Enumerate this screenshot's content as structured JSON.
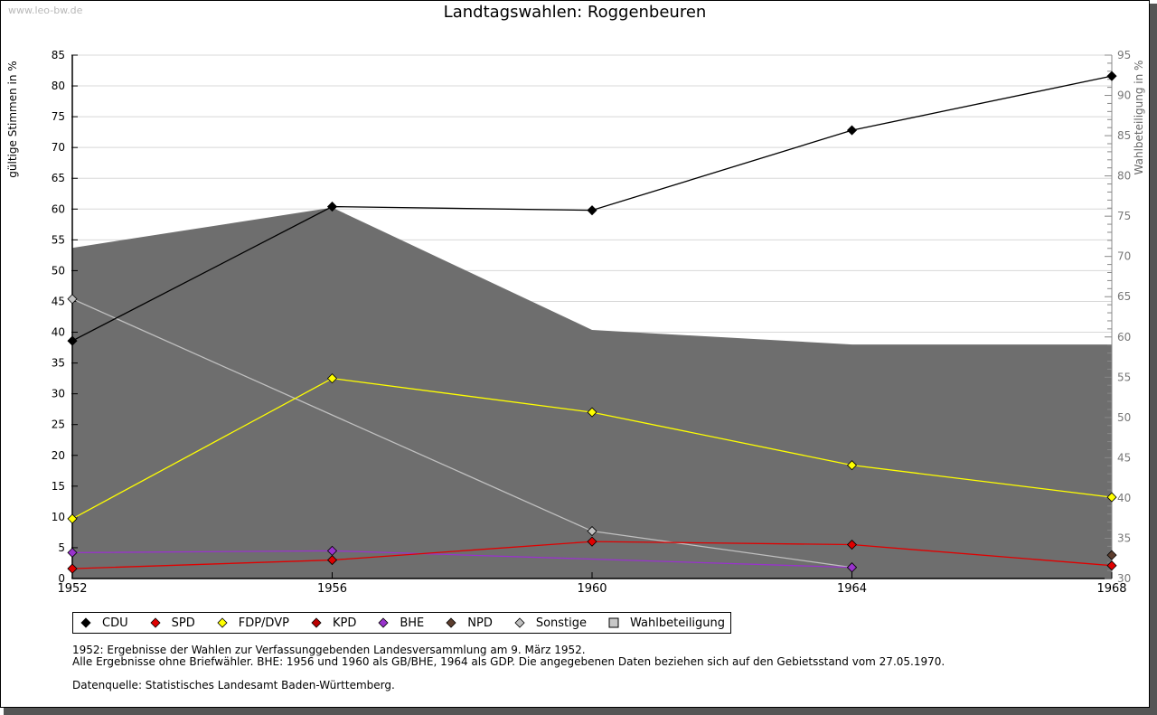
{
  "watermark": "www.leo-bw.de",
  "chart_data": {
    "type": "line",
    "title": "Landtagswahlen: Roggenbeuren",
    "ylabel": "gültige Stimmen in %",
    "y2label": "Wahlbeteiligung in %",
    "xlabel": "",
    "x": [
      1952,
      1956,
      1960,
      1964,
      1968
    ],
    "ylim": [
      0,
      85
    ],
    "y2lim": [
      30,
      95
    ],
    "yticks": [
      0,
      5,
      10,
      15,
      20,
      25,
      30,
      35,
      40,
      45,
      50,
      55,
      60,
      65,
      70,
      75,
      80,
      85
    ],
    "y2ticks": [
      30,
      35,
      40,
      45,
      50,
      55,
      60,
      65,
      70,
      75,
      80,
      85,
      90,
      95
    ],
    "grid": true,
    "series": [
      {
        "name": "Wahlbeteiligung",
        "axis": "right",
        "kind": "area",
        "color": "#808080",
        "values": [
          71.0,
          76.0,
          60.8,
          59.0,
          59.0
        ]
      },
      {
        "name": "Sonstige",
        "color": "#c0c0c0",
        "values": [
          45.4,
          null,
          7.7,
          1.8,
          null
        ]
      },
      {
        "name": "BHE",
        "color": "#9933cc",
        "values": [
          4.2,
          4.5,
          null,
          1.8,
          null
        ]
      },
      {
        "name": "KPD",
        "color": "#bb0000",
        "values": [
          1.6,
          null,
          null,
          null,
          null
        ]
      },
      {
        "name": "SPD",
        "color": "#e00000",
        "values": [
          1.6,
          3.0,
          6.0,
          5.5,
          2.1
        ]
      },
      {
        "name": "FDP/DVP",
        "color": "#ffff00",
        "values": [
          9.7,
          32.5,
          27.0,
          18.4,
          13.2
        ]
      },
      {
        "name": "NPD",
        "color": "#5c3d2e",
        "values": [
          null,
          null,
          null,
          null,
          3.8
        ]
      },
      {
        "name": "CDU",
        "color": "#000000",
        "values": [
          38.6,
          60.4,
          59.8,
          72.8,
          81.6
        ]
      }
    ],
    "legend": {
      "placement": "bottom",
      "items": [
        {
          "label": "CDU",
          "color": "#000000",
          "shape": "diamond"
        },
        {
          "label": "SPD",
          "color": "#e00000",
          "shape": "diamond"
        },
        {
          "label": "FDP/DVP",
          "color": "#ffff00",
          "shape": "diamond"
        },
        {
          "label": "KPD",
          "color": "#bb0000",
          "shape": "diamond"
        },
        {
          "label": "BHE",
          "color": "#9933cc",
          "shape": "diamond"
        },
        {
          "label": "NPD",
          "color": "#5c3d2e",
          "shape": "diamond"
        },
        {
          "label": "Sonstige",
          "color": "#c0c0c0",
          "shape": "diamond"
        },
        {
          "label": "Wahlbeteiligung",
          "color": "#a0a0a0",
          "shape": "square"
        }
      ]
    }
  },
  "notes": {
    "line1": "1952: Ergebnisse der Wahlen zur Verfassunggebenden Landesversammlung am 9. März 1952.",
    "line2": "Alle Ergebnisse ohne Briefwähler. BHE: 1956 und 1960 als GB/BHE, 1964 als GDP. Die angegebenen Daten beziehen sich auf den Gebietsstand vom 27.05.1970.",
    "source": "Datenquelle: Statistisches Landesamt Baden-Württemberg."
  }
}
